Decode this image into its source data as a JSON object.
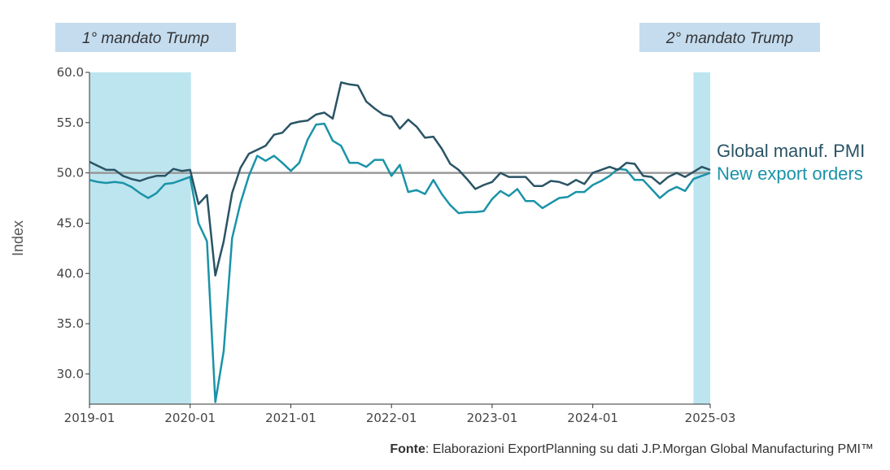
{
  "chart_data": {
    "type": "line",
    "ylabel": "Index",
    "ylim": [
      27,
      60
    ],
    "yticks": [
      "60.0",
      "55.0",
      "50.0",
      "45.0",
      "40.0",
      "35.0",
      "30.0"
    ],
    "xticks": [
      "2019-01",
      "2020-01",
      "2021-01",
      "2022-01",
      "2023-01",
      "2024-01",
      "2025-03"
    ],
    "x_start": "2019-01",
    "x_end": "2025-03",
    "reference_line": 50,
    "shaded_periods": [
      {
        "label": "1° mandato Trump",
        "start": "2019-01",
        "end": "2020-01"
      },
      {
        "label": "2° mandato Trump",
        "start": "2025-01",
        "end": "2025-03"
      }
    ],
    "series": [
      {
        "name": "Global manuf. PMI",
        "color": "#2a5465",
        "values": [
          51.1,
          50.7,
          50.3,
          50.3,
          49.7,
          49.4,
          49.2,
          49.5,
          49.7,
          49.7,
          50.4,
          50.2,
          50.3,
          46.9,
          47.8,
          39.8,
          43.2,
          48.0,
          50.5,
          51.9,
          52.3,
          52.7,
          53.8,
          54.0,
          54.9,
          55.1,
          55.2,
          55.8,
          56.0,
          55.4,
          59.0,
          58.8,
          58.7,
          57.1,
          56.4,
          55.8,
          55.6,
          54.4,
          55.3,
          54.6,
          53.5,
          53.6,
          52.4,
          50.9,
          50.3,
          49.4,
          48.4,
          48.8,
          49.1,
          50.0,
          49.6,
          49.6,
          49.6,
          48.7,
          48.7,
          49.2,
          49.1,
          48.8,
          49.3,
          48.9,
          50.0,
          50.3,
          50.6,
          50.3,
          51.0,
          50.9,
          49.7,
          49.6,
          48.9,
          49.6,
          50.0,
          49.6,
          50.1,
          50.6,
          50.3
        ]
      },
      {
        "name": "New export orders",
        "color": "#1a93a8",
        "values": [
          49.3,
          49.1,
          49.0,
          49.1,
          49.0,
          48.6,
          48.0,
          47.5,
          48.0,
          48.9,
          49.0,
          49.3,
          49.6,
          45.0,
          43.2,
          27.2,
          32.3,
          43.5,
          47.0,
          49.7,
          51.7,
          51.2,
          51.7,
          51.0,
          50.2,
          51.0,
          53.3,
          54.8,
          54.9,
          53.2,
          52.7,
          51.0,
          51.0,
          50.6,
          51.3,
          51.3,
          49.7,
          50.8,
          48.1,
          48.3,
          47.9,
          49.3,
          47.9,
          46.8,
          46.0,
          46.1,
          46.1,
          46.2,
          47.4,
          48.2,
          47.7,
          48.4,
          47.2,
          47.2,
          46.5,
          47.0,
          47.5,
          47.6,
          48.1,
          48.1,
          48.8,
          49.2,
          49.7,
          50.4,
          50.3,
          49.3,
          49.3,
          48.4,
          47.5,
          48.2,
          48.6,
          48.2,
          49.4,
          49.7,
          50.0
        ]
      }
    ]
  },
  "source": {
    "label": "Fonte",
    "text": ": Elaborazioni ExportPlanning su dati J.P.Morgan Global Manufacturing PMI™"
  }
}
